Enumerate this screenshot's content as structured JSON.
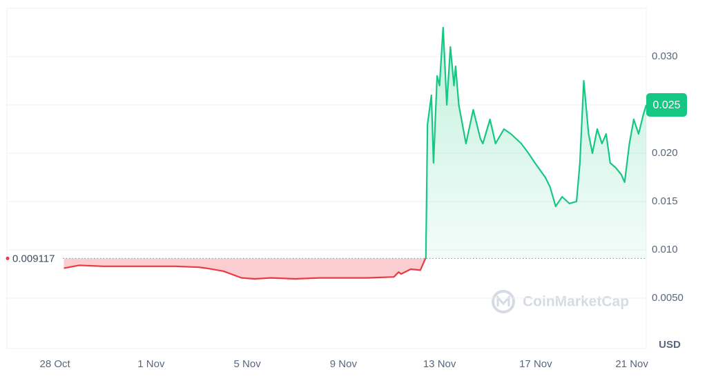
{
  "chart_data": {
    "type": "line",
    "x": [
      0.37,
      1.0,
      2.0,
      3.0,
      4.0,
      5.0,
      6.0,
      6.3,
      7.0,
      7.76,
      8.3,
      9.0,
      10.0,
      11.0,
      12.0,
      13.0,
      14.1,
      14.3,
      14.4,
      14.8,
      15.2,
      15.43,
      15.5,
      15.66,
      15.75,
      15.9,
      16.0,
      16.15,
      16.3,
      16.45,
      16.6,
      16.67,
      16.8,
      17.1,
      17.4,
      17.7,
      17.8,
      18.1,
      18.33,
      18.68,
      18.97,
      19.4,
      19.7,
      19.97,
      20.4,
      20.6,
      20.83,
      21.1,
      21.4,
      21.7,
      21.84,
      22.0,
      22.2,
      22.36,
      22.56,
      22.76,
      22.93,
      23.1,
      23.33,
      23.56,
      23.7,
      23.9,
      24.08,
      24.28,
      24.48,
      24.6
    ],
    "values": [
      0.0081,
      0.0084,
      0.0083,
      0.0083,
      0.0083,
      0.0083,
      0.0082,
      0.0081,
      0.0078,
      0.0071,
      0.007,
      0.0071,
      0.007,
      0.0071,
      0.0071,
      0.0071,
      0.0072,
      0.0077,
      0.0075,
      0.008,
      0.0079,
      0.0092,
      0.023,
      0.026,
      0.019,
      0.028,
      0.027,
      0.033,
      0.025,
      0.031,
      0.027,
      0.029,
      0.025,
      0.021,
      0.0245,
      0.0215,
      0.021,
      0.0235,
      0.021,
      0.0225,
      0.022,
      0.021,
      0.02,
      0.019,
      0.0175,
      0.0165,
      0.0145,
      0.0155,
      0.0148,
      0.015,
      0.019,
      0.0275,
      0.022,
      0.02,
      0.0225,
      0.021,
      0.022,
      0.019,
      0.0185,
      0.0178,
      0.017,
      0.021,
      0.0235,
      0.022,
      0.024,
      0.025
    ],
    "color_above": "#16c784",
    "color_below": "#ea3943",
    "baseline": 0.009117,
    "current_price": 0.025,
    "xlim": [
      -2,
      24.6
    ],
    "xticks": [
      {
        "value": 0,
        "label": "28 Oct"
      },
      {
        "value": 4,
        "label": "1 Nov"
      },
      {
        "value": 8,
        "label": "5 Nov"
      },
      {
        "value": 12,
        "label": "9 Nov"
      },
      {
        "value": 16,
        "label": "13 Nov"
      },
      {
        "value": 20,
        "label": "17 Nov"
      },
      {
        "value": 24,
        "label": "21 Nov"
      }
    ],
    "ylim": [
      0,
      0.035
    ],
    "yticks": [
      {
        "value": 0.005,
        "label": "0.0050"
      },
      {
        "value": 0.01,
        "label": "0.010"
      },
      {
        "value": 0.015,
        "label": "0.015"
      },
      {
        "value": 0.02,
        "label": "0.020"
      },
      {
        "value": 0.025,
        "label": "0.025"
      },
      {
        "value": 0.03,
        "label": "0.030"
      }
    ],
    "y_unit": "USD",
    "watermark": "CoinMarketCap",
    "grid": true
  }
}
